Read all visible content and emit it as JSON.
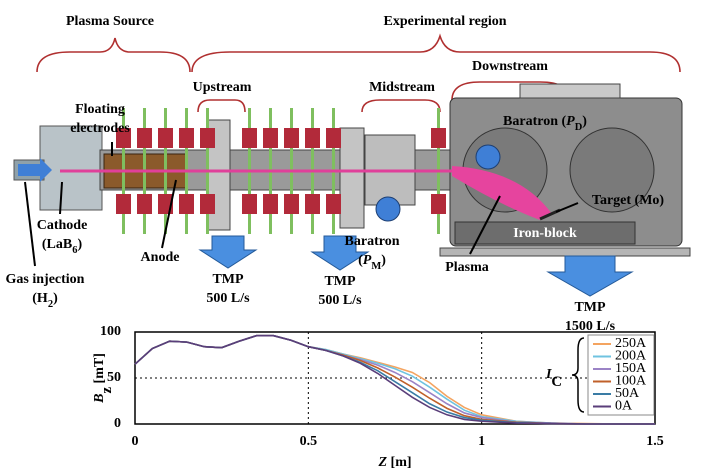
{
  "diagram": {
    "labels": [
      {
        "lines": [
          "Plasma Source"
        ]
      },
      {
        "lines": [
          "Experimental region"
        ]
      },
      {
        "lines": [
          "Upstream"
        ]
      },
      {
        "lines": [
          "Midstream"
        ]
      },
      {
        "lines": [
          "Downstream"
        ]
      },
      {
        "lines": [
          "Floating",
          "electrodes"
        ]
      },
      {
        "lines": [
          {
            "text": "Baratron (",
            "var": "P",
            "sub": "D",
            "tail": ")"
          }
        ]
      },
      {
        "lines": [
          "Target (Mo)"
        ]
      },
      {
        "lines": [
          "Iron-block"
        ]
      },
      {
        "lines": [
          "Cathode",
          {
            "text": "(LaB",
            "sub": "6",
            "tail": ")"
          }
        ]
      },
      {
        "lines": [
          "Gas injection",
          {
            "text": "(H",
            "sub": "2",
            "tail": ")"
          }
        ]
      },
      {
        "lines": [
          "Anode"
        ]
      },
      {
        "lines": [
          "TMP",
          "500 L/s"
        ]
      },
      {
        "lines": [
          "TMP",
          "500 L/s"
        ]
      },
      {
        "lines": [
          "Baratron",
          {
            "text": "(",
            "var": "P",
            "sub": "M",
            "tail": ")"
          }
        ]
      },
      {
        "lines": [
          "Plasma"
        ]
      },
      {
        "lines": [
          "TMP",
          "1500 L/s"
        ]
      }
    ]
  },
  "chart_data": {
    "type": "line",
    "ylabel": {
      "var": "B",
      "sub": "z",
      "tail": " [mT]"
    },
    "xlabel": {
      "var": "Z",
      "tail": " [m]"
    },
    "legend_title": {
      "var": "I",
      "sub": "C"
    },
    "xlim": [
      0,
      1.5
    ],
    "ylim": [
      0,
      100
    ],
    "xticks": [
      0,
      0.5,
      1,
      1.5
    ],
    "yticks": [
      0,
      50,
      100
    ],
    "grid": true,
    "x": [
      0,
      0.05,
      0.1,
      0.15,
      0.2,
      0.25,
      0.3,
      0.35,
      0.4,
      0.45,
      0.5,
      0.55,
      0.6,
      0.65,
      0.7,
      0.75,
      0.8,
      0.85,
      0.9,
      0.95,
      1.0,
      1.1,
      1.2,
      1.3,
      1.4,
      1.5
    ],
    "series": [
      {
        "name": "250A",
        "color": "#f4a460",
        "values": [
          65,
          82,
          90,
          89,
          84,
          83,
          90,
          96,
          96,
          91,
          84,
          81,
          76,
          72,
          67,
          62,
          56,
          45,
          30,
          18,
          10,
          3,
          1,
          0.5,
          0,
          0
        ]
      },
      {
        "name": "200A",
        "color": "#6fc3e0",
        "values": [
          65,
          82,
          90,
          89,
          84,
          83,
          90,
          96,
          96,
          91,
          84,
          81,
          76,
          71,
          66,
          60,
          52,
          40,
          27,
          15,
          8,
          3,
          1,
          0,
          0,
          0
        ]
      },
      {
        "name": "150A",
        "color": "#9b83c6",
        "values": [
          65,
          82,
          90,
          89,
          84,
          83,
          90,
          96,
          96,
          91,
          84,
          80,
          75,
          70,
          64,
          56,
          46,
          34,
          22,
          12,
          7,
          2,
          1,
          0,
          0,
          0
        ]
      },
      {
        "name": "100A",
        "color": "#c0602a",
        "values": [
          65,
          82,
          90,
          89,
          84,
          83,
          90,
          96,
          96,
          91,
          84,
          80,
          75,
          69,
          61,
          51,
          40,
          28,
          17,
          9,
          5,
          2,
          0.5,
          0,
          0,
          0
        ]
      },
      {
        "name": "50A",
        "color": "#3a7ca5",
        "values": [
          65,
          82,
          90,
          89,
          84,
          83,
          90,
          96,
          96,
          91,
          84,
          80,
          74,
          67,
          58,
          46,
          34,
          22,
          13,
          7,
          4,
          1.5,
          0.5,
          0,
          0,
          0
        ]
      },
      {
        "name": "0A",
        "color": "#5a3e7a",
        "values": [
          65,
          82,
          90,
          89,
          84,
          83,
          90,
          96,
          96,
          91,
          84,
          80,
          74,
          66,
          55,
          42,
          29,
          18,
          10,
          5,
          3,
          1,
          0.5,
          0,
          0,
          0
        ]
      }
    ]
  }
}
